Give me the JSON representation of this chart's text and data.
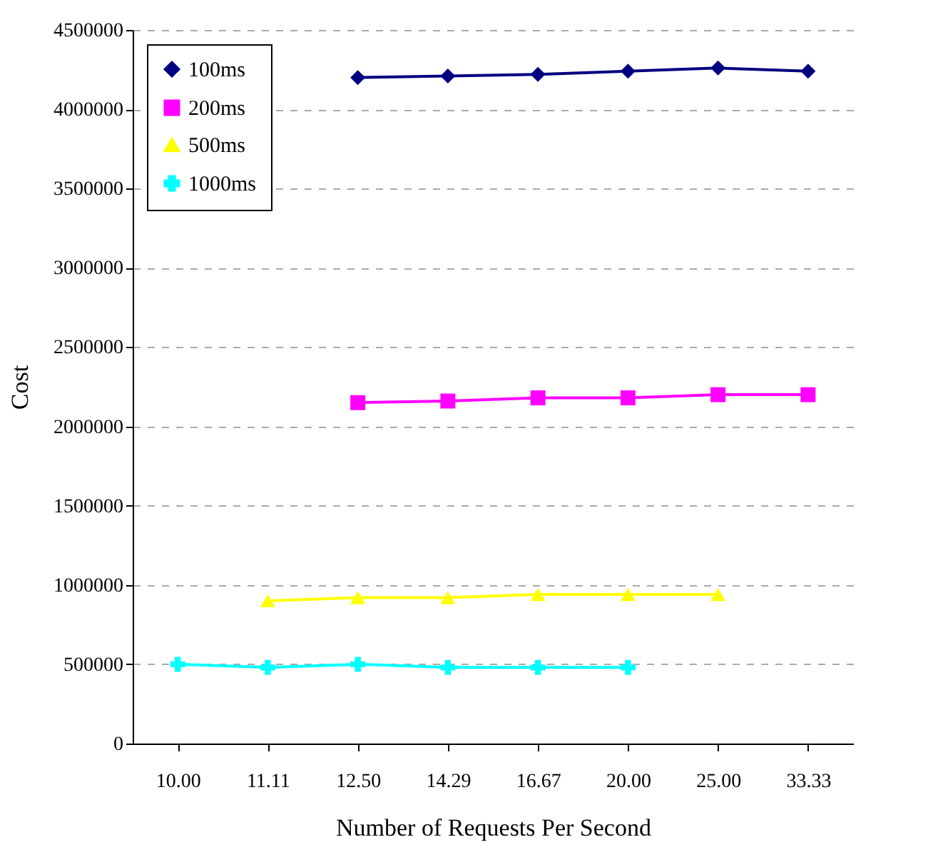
{
  "chart_data": {
    "type": "line",
    "xlabel": "Number of Requests Per Second",
    "ylabel": "Cost",
    "categories": [
      "10.00",
      "11.11",
      "12.50",
      "14.29",
      "16.67",
      "20.00",
      "25.00",
      "33.33"
    ],
    "series": [
      {
        "name": "100ms",
        "color": "#000080",
        "marker": "diamond",
        "values": [
          null,
          null,
          4200000,
          4210000,
          4220000,
          4240000,
          4260000,
          4240000
        ]
      },
      {
        "name": "200ms",
        "color": "#ff00ff",
        "marker": "square",
        "values": [
          null,
          null,
          2150000,
          2160000,
          2180000,
          2180000,
          2200000,
          2200000
        ]
      },
      {
        "name": "500ms",
        "color": "#ffff00",
        "marker": "triangle",
        "values": [
          null,
          900000,
          920000,
          920000,
          940000,
          940000,
          940000,
          null
        ]
      },
      {
        "name": "1000ms",
        "color": "#00ffff",
        "marker": "cross",
        "values": [
          500000,
          480000,
          500000,
          480000,
          480000,
          480000,
          null,
          null
        ]
      }
    ],
    "ylim": [
      0,
      4500000
    ],
    "yticks": [
      0,
      500000,
      1000000,
      1500000,
      2000000,
      2500000,
      3000000,
      3500000,
      4000000,
      4500000
    ],
    "grid": "y",
    "legend": "top left"
  }
}
